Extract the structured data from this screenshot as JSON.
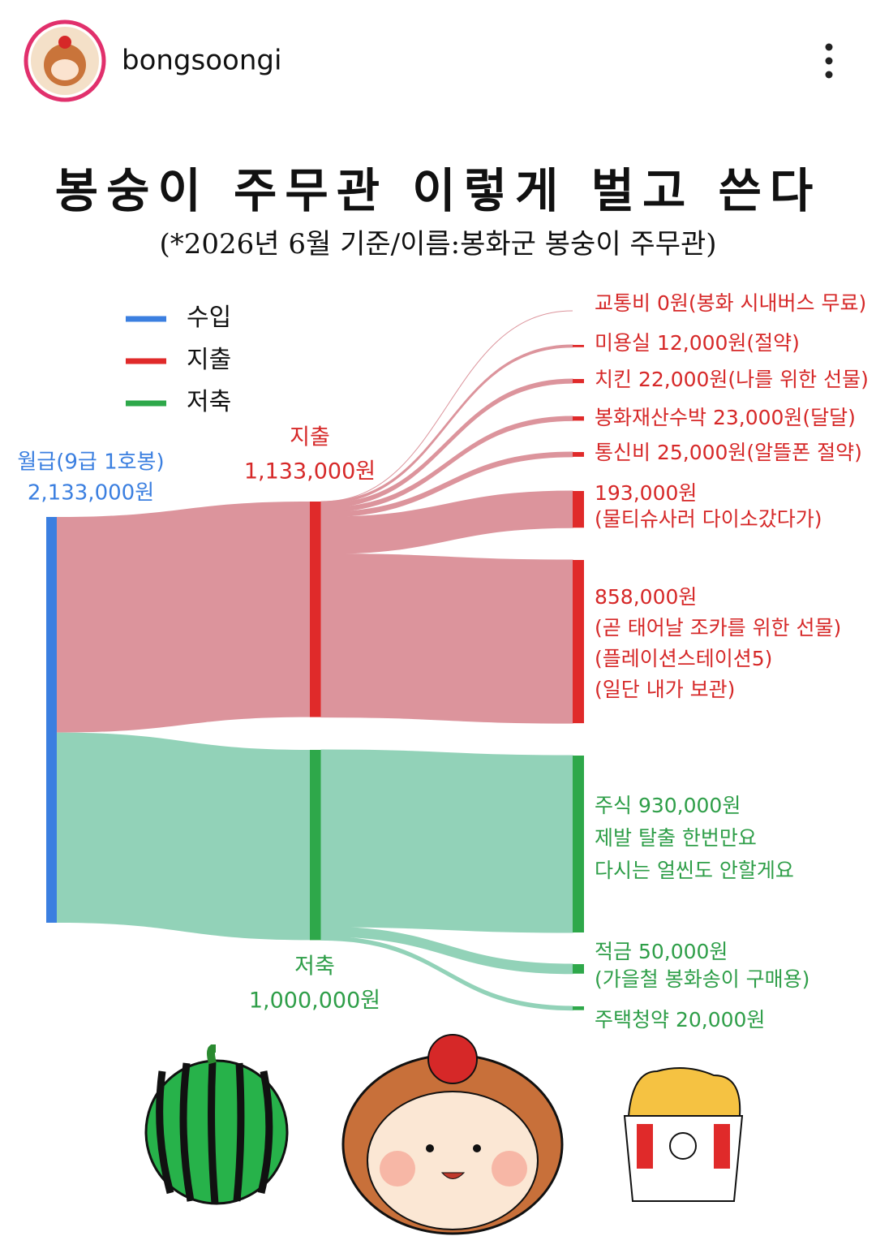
{
  "header": {
    "username": "bongsoongi"
  },
  "chart_data": {
    "type": "sankey",
    "title": "봉숭이 주무관 이렇게 벌고 쓴다",
    "subtitle": "(*2026년 6월 기준/이름:봉화군 봉숭이 주무관)",
    "legend": [
      {
        "name": "수입",
        "color": "#3b7fe0"
      },
      {
        "name": "지출",
        "color": "#e02a2a"
      },
      {
        "name": "저축",
        "color": "#2ea84a"
      }
    ],
    "income": {
      "label": [
        "월급(9급 1호봉)",
        "2,133,000원"
      ],
      "value": 2133000,
      "color": "#3b7fe0"
    },
    "groups": [
      {
        "label": [
          "지출",
          "1,133,000원"
        ],
        "value": 1133000,
        "color": "#e02a2a",
        "link_color": "#dc949c",
        "items": [
          {
            "label": [
              "교통비 0원(봉화 시내버스 무료)"
            ],
            "value": 0
          },
          {
            "label": [
              "미용실 12,000원(절약)"
            ],
            "value": 12000
          },
          {
            "label": [
              "치킨 22,000원(나를 위한 선물)"
            ],
            "value": 22000
          },
          {
            "label": [
              "봉화재산수박 23,000원(달달)"
            ],
            "value": 23000
          },
          {
            "label": [
              "통신비 25,000원(알뜰폰 절약)"
            ],
            "value": 25000
          },
          {
            "label": [
              "193,000원",
              "(물티슈사러 다이소갔다가)"
            ],
            "value": 193000
          },
          {
            "label": [
              "858,000원",
              "(곧 태어날 조카를 위한 선물)",
              "(플레이션스테이션5)",
              "(일단 내가 보관)"
            ],
            "value": 858000
          }
        ]
      },
      {
        "label": [
          "저축",
          "1,000,000원"
        ],
        "value": 1000000,
        "color": "#2ea84a",
        "link_color": "#92d2b8",
        "items": [
          {
            "label": [
              "주식 930,000원",
              "제발 탈출 한번만요",
              "다시는 얼씬도 안할게요"
            ],
            "value": 930000
          },
          {
            "label": [
              "적금 50,000원",
              "(가을철 봉화송이 구매용)"
            ],
            "value": 50000
          },
          {
            "label": [
              "주택청약 20,000원"
            ],
            "value": 20000
          }
        ]
      }
    ]
  }
}
